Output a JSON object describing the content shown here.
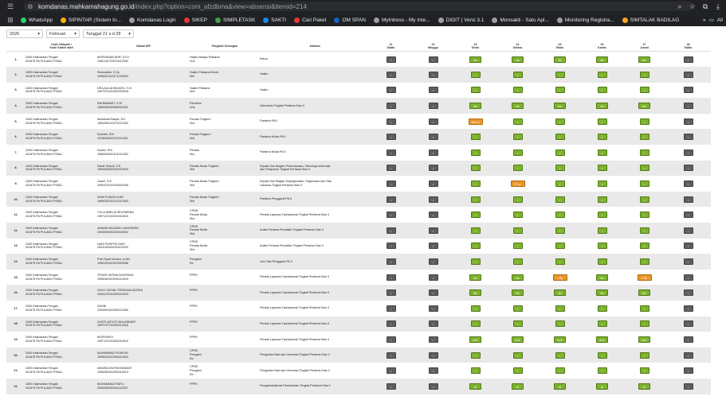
{
  "browser": {
    "url_host": "komdanas.mahkamahagung.go.id",
    "url_path": "/index.php?option=com_afzdbma&view=absensi&itemid=214",
    "bookmarks": [
      {
        "label": "WhatsApp",
        "color": "#25d366"
      },
      {
        "label": "SIPINTAR (Sistem In...",
        "color": "#f4b400"
      },
      {
        "label": "Komdanas Login",
        "color": "#9e9e9e"
      },
      {
        "label": "SIKEP",
        "color": "#e53935"
      },
      {
        "label": "SIMPLETASK",
        "color": "#43a047"
      },
      {
        "label": "SAKTI",
        "color": "#1e88e5"
      },
      {
        "label": "Cari Paket",
        "color": "#e53935"
      },
      {
        "label": "OM SPAN",
        "color": "#1565c0"
      },
      {
        "label": "MyIntress - My Inte...",
        "color": "#9e9e9e"
      },
      {
        "label": "DIGIT | Versi 3.1",
        "color": "#9e9e9e"
      },
      {
        "label": "Monsakti - Satu Apl...",
        "color": "#9e9e9e"
      },
      {
        "label": "Monitoring Registra...",
        "color": "#9e9e9e"
      },
      {
        "label": "SIMTALAK BADILAG",
        "color": "#f9a825"
      }
    ],
    "all_bookmarks": "All"
  },
  "filters": {
    "year": "2026",
    "month": "Februari",
    "range": "Tanggal 21 s.d 28"
  },
  "headers": {
    "no": "",
    "kode": [
      "Kode Wilayah /",
      "Kode Satker aktif"
    ],
    "nama": "Nama/ NIP",
    "pangkat": "Pangkat/ Golongan",
    "jabatan": "Jabatan",
    "days": [
      {
        "date": "21",
        "day": "Sabtu"
      },
      {
        "date": "22",
        "day": "Minggu"
      },
      {
        "date": "23",
        "day": "Senin"
      },
      {
        "date": "24",
        "day": "Selasa"
      },
      {
        "date": "25",
        "day": "Rabu"
      },
      {
        "date": "26",
        "day": "Kamis"
      },
      {
        "date": "27",
        "day": "Jumat"
      },
      {
        "date": "28",
        "day": "Sabtu"
      }
    ]
  },
  "rows": [
    {
      "no": "1.",
      "kode": [
        "2400 Kalimantan Tengah",
        "401875 PA PULANG PISAU"
      ],
      "nama": [
        "MORYANAN ARIF, S.H.I",
        "1982120720070412002"
      ],
      "pangkat": [
        "Hakim Madya Pratama",
        "IV/a"
      ],
      "jabatan": [
        "Ketua"
      ],
      "days": [
        "grey",
        "grey",
        "green:dis",
        "green:dis",
        "green:dis",
        "green:dis",
        "green:dis",
        "grey"
      ]
    },
    {
      "no": "2.",
      "kode": [
        "2400 Kalimantan Tengah",
        "401875 PA PULANG PISAU"
      ],
      "nama": [
        "Rahmatiah, S.Sy",
        "1995022120171220004"
      ],
      "pangkat": [
        "Hakim Pratama Muda",
        "III/b"
      ],
      "jabatan": [
        "Hakim"
      ],
      "days": [
        "grey",
        "grey",
        "green",
        "green",
        "green",
        "green",
        "green",
        "grey"
      ]
    },
    {
      "no": "3.",
      "kode": [
        "2400 Kalimantan Tengah",
        "401875 PA PULANG PISAU"
      ],
      "nama": [
        "DRA AULIA RAHAYU, S.H.",
        "1997070120150320018"
      ],
      "pangkat": [
        "Hakim Pratama",
        "III/a"
      ],
      "jabatan": [
        "Hakim"
      ],
      "days": [
        "grey",
        "grey",
        "green",
        "green",
        "green",
        "green",
        "green",
        "grey"
      ]
    },
    {
      "no": "4.",
      "kode": [
        "2400 Kalimantan Tengah",
        "401875 PA PULANG PISAU"
      ],
      "nama": [
        "RAHMAWATI, S.HI",
        "1980060320080510001"
      ],
      "pangkat": [
        "Pembina",
        "IV/a"
      ],
      "jabatan": [
        "Sekretaris Tingkat Pertama Klas II"
      ],
      "days": [
        "grey",
        "grey",
        "green:dis",
        "green:dis",
        "green:dis",
        "green:dis",
        "green:dis",
        "grey"
      ]
    },
    {
      "no": "5.",
      "kode": [
        "2400 Kalimantan Tengah",
        "401875 PA PULANG PISAU"
      ],
      "nama": [
        "Muhamad Basyir, SH.",
        "1981050120070212002"
      ],
      "pangkat": [
        "Penata Tingkat I",
        "III/d"
      ],
      "jabatan": [
        "Panitera PA II"
      ],
      "days": [
        "grey",
        "grey",
        "orange:Iline-w",
        "green",
        "green",
        "green",
        "green",
        "grey"
      ]
    },
    {
      "no": "6.",
      "kode": [
        "2400 Kalimantan Tengah",
        "401875 PA PULANG PISAU"
      ],
      "nama": [
        "Norhaiti, SHI",
        "1978090620070212001"
      ],
      "pangkat": [
        "Penata Tingkat I",
        "III/d"
      ],
      "jabatan": [
        "Panitera Muda PA II"
      ],
      "days": [
        "grey",
        "grey",
        "green",
        "green",
        "green",
        "green",
        "green",
        "grey"
      ]
    },
    {
      "no": "7.",
      "kode": [
        "2400 Kalimantan Tengah",
        "401875 PA PULANG PISAU"
      ],
      "nama": [
        "Kartini, SHI",
        "1980092620101212002"
      ],
      "pangkat": [
        "Penata",
        "III/c"
      ],
      "jabatan": [
        "Panitera Muda PA II"
      ],
      "days": [
        "grey",
        "grey",
        "green",
        "green",
        "green",
        "green",
        "green",
        "grey"
      ]
    },
    {
      "no": "8.",
      "kode": [
        "2400 Kalimantan Tengah",
        "401875 PA PULANG PISAU"
      ],
      "nama": [
        "Fandi Triandi, S.E.",
        "1994050820190310003"
      ],
      "pangkat": [
        "Penata Muda Tingkat I",
        "III/b"
      ],
      "jabatan": [
        "Kepala Sub Bagian Perencanaan, Teknologi Informasi,",
        "dan Pelaporan Tingkat Pertama Klas II"
      ],
      "days": [
        "grey",
        "grey",
        "green",
        "green",
        "green",
        "green",
        "green",
        "grey"
      ]
    },
    {
      "no": "9.",
      "kode": [
        "2400 Kalimantan Tengah",
        "401875 PA PULANG PISAU"
      ],
      "nama": [
        "Juarni, S.E.",
        "1990473120190302009"
      ],
      "pangkat": [
        "Penata Muda Tingkat I",
        "III/b"
      ],
      "jabatan": [
        "Kepala Sub Bagian Kepegawaian, Organisasi dan Tata",
        "Laksana Tingkat Pertama Klas II"
      ],
      "days": [
        "grey",
        "grey",
        "green",
        "orange:CT-w",
        "green",
        "green",
        "green",
        "grey"
      ]
    },
    {
      "no": "10.",
      "kode": [
        "2400 Kalimantan Tengah",
        "401875 PA PULANG PISAU"
      ],
      "nama": [
        "AZMI FUADZI A MD",
        "1989032020210212003"
      ],
      "pangkat": [
        "Penata Muda Tingkat I",
        "III/b"
      ],
      "jabatan": [
        "Panitera Pengganti PA II"
      ],
      "days": [
        "grey",
        "grey",
        "green",
        "green",
        "green",
        "green",
        "green",
        "grey"
      ]
    },
    {
      "no": "11.",
      "kode": [
        "2400 Kalimantan Tengah",
        "401875 PA PULANG PISAU"
      ],
      "nama": [
        "YOLA AMELIA ISHOMRING",
        "1997122120220410015"
      ],
      "pangkat": [
        "CPNS",
        "Penata Muda",
        "III/a"
      ],
      "jabatan": [
        "Penata Layanan Operasional Tingkat Pertama Klas II"
      ],
      "days": [
        "grey",
        "grey",
        "green",
        "green",
        "green",
        "green",
        "green",
        "grey"
      ]
    },
    {
      "no": "12.",
      "kode": [
        "2400 Kalimantan Tengah",
        "401875 PA PULANG PISAU"
      ],
      "nama": [
        "AHMAD MUZAKKI JUNOPARO",
        "2000060920230410004"
      ],
      "pangkat": [
        "CPNS",
        "Penata Muda",
        "III/a"
      ],
      "jabatan": [
        "Analis Perkara Peradilan Tingkat Pertama Klas II"
      ],
      "days": [
        "grey",
        "grey",
        "green",
        "green",
        "green",
        "green",
        "green",
        "grey"
      ]
    },
    {
      "no": "13.",
      "kode": [
        "2400 Kalimantan Tengah",
        "401875 PA PULANG PISAU"
      ],
      "nama": [
        "HANI PUSPITA SARI",
        "2001100420230412009"
      ],
      "pangkat": [
        "CPNS",
        "Penata Muda",
        "III/a"
      ],
      "jabatan": [
        "Analis Perkara Peradilan Tingkat Pertama Klas II"
      ],
      "days": [
        "grey",
        "grey",
        "green",
        "green",
        "green",
        "green",
        "green",
        "grey"
      ]
    },
    {
      "no": "14.",
      "kode": [
        "2400 Kalimantan Tengah",
        "401875 PA PULANG PISAU"
      ],
      "nama": [
        "Putri Syah Nerano, A.Md.",
        "1996122420220320008"
      ],
      "pangkat": [
        "Pengatur",
        "II/c"
      ],
      "jabatan": [
        "Juru Sita Pengganti PA II"
      ],
      "days": [
        "grey",
        "grey",
        "green",
        "green",
        "green",
        "green",
        "green",
        "grey"
      ]
    },
    {
      "no": "15.",
      "kode": [
        "2400 Kalimantan Tengah",
        "401875 PA PULANG PISAU"
      ],
      "nama": [
        "TESAR SATRIA NUGRAHA",
        "1996042920250210043"
      ],
      "pangkat": [
        "PPPK",
        "-"
      ],
      "jabatan": [
        "Penata Layanan Operasional Tingkat Pertama Klas II"
      ],
      "days": [
        "grey",
        "grey",
        "green:dis",
        "green:dis",
        "orange:v-Rp",
        "green:dis",
        "orange:v-Rp",
        "grey"
      ]
    },
    {
      "no": "16.",
      "kode": [
        "2400 Kalimantan Tengah",
        "401875 PA PULANG PISAU"
      ],
      "nama": [
        "VICKY NOVAL PERDANA SATRIA",
        "1994122020250210033"
      ],
      "pangkat": [
        "PPPK",
        "-"
      ],
      "jabatan": [
        "Penata Layanan Operasional Tingkat Pertama Klas II"
      ],
      "days": [
        "grey",
        "grey",
        "green:dis",
        "green:dis",
        "green:dis",
        "green:dis",
        "green:dis",
        "grey"
      ]
    },
    {
      "no": "17.",
      "kode": [
        "2400 Kalimantan Tengah",
        "401875 PA PULANG PISAU"
      ],
      "nama": [
        "SAUNI",
        "1994061420250212050"
      ],
      "pangkat": [
        "PPPK",
        "-"
      ],
      "jabatan": [
        "Penata Layanan Operasional Tingkat Pertama Klas II"
      ],
      "days": [
        "grey",
        "grey",
        "green",
        "green",
        "green",
        "green",
        "green",
        "grey"
      ]
    },
    {
      "no": "18.",
      "kode": [
        "2400 Kalimantan Tengah",
        "401875 PA PULANG PISAU"
      ],
      "nama": [
        "GUSTI ASTUTI MULANDARI",
        "1997072720250212016"
      ],
      "pangkat": [
        "PPPK",
        "-"
      ],
      "jabatan": [
        "Penata Layanan Operasional Tingkat Pertama Klas II"
      ],
      "days": [
        "grey",
        "grey",
        "green",
        "green",
        "green",
        "green",
        "green",
        "grey"
      ]
    },
    {
      "no": "19.",
      "kode": [
        "2400 Kalimantan Tengah",
        "401875 PA PULANG PISAU"
      ],
      "nama": [
        "MORIYANTI",
        "1997122120250210019"
      ],
      "pangkat": [
        "PPPK",
        "-"
      ],
      "jabatan": [
        "Penata Layanan Operasional Tingkat Pertama Klas II"
      ],
      "days": [
        "grey",
        "grey",
        "green:sm1",
        "green:sm1",
        "green:sm1",
        "green:sm1",
        "green:sm1",
        "grey"
      ]
    },
    {
      "no": "20.",
      "kode": [
        "2400 Kalimantan Tengah",
        "401875 PA PULANG PISAU"
      ],
      "nama": [
        "MUHAMMAD ROSIDIN",
        "1995042420250410004"
      ],
      "pangkat": [
        "CPNS",
        "Pengatur",
        "II/c"
      ],
      "jabatan": [
        "Pengelola Data dan Informasi Tingkat Pertama Klas II"
      ],
      "days": [
        "grey",
        "grey",
        "green",
        "green",
        "green",
        "green",
        "green",
        "grey"
      ]
    },
    {
      "no": "21.",
      "kode": [
        "2400 Kalimantan Tengah",
        "401875 PA PULANG PISAU"
      ],
      "nama": [
        "ANNISA DWI RIZKIAWATI",
        "1996050420250410013"
      ],
      "pangkat": [
        "CPNS",
        "Pengatur",
        "II/c"
      ],
      "jabatan": [
        "Pengelola Data dan Informasi Tingkat Pertama Klas II"
      ],
      "days": [
        "grey",
        "grey",
        "green",
        "green",
        "green",
        "green",
        "green",
        "grey"
      ]
    },
    {
      "no": "22.",
      "kode": [
        "2400 Kalimantan Tengah",
        "401875 PA PULANG PISAU"
      ],
      "nama": [
        "MUHAMMAD RAFLI",
        "2000050920251012007"
      ],
      "pangkat": [
        "PPPK",
        "-"
      ],
      "jabatan": [
        "Pengadministrasi Perkantoran Tingkat Pertama Klas II"
      ],
      "days": [
        "grey",
        "grey",
        "green:dl",
        "green:dl",
        "green:dl",
        "green:dl",
        "green:dl",
        "grey"
      ]
    }
  ]
}
